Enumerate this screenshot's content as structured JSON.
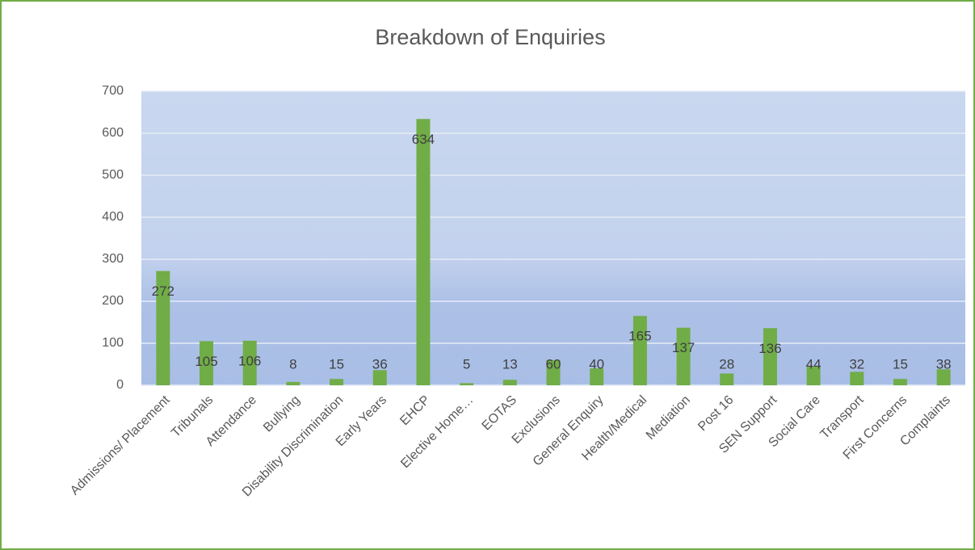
{
  "chart_data": {
    "type": "bar",
    "title": "Breakdown of Enquiries",
    "categories": [
      "Admissions/ Placement",
      "Tribunals",
      "Attendance",
      "Bullying",
      "Disability Discrimination",
      "Early Years",
      "EHCP",
      "Elective Home…",
      "EOTAS",
      "Exclusions",
      "General Enquiry",
      "Health/Medical",
      "Mediation",
      "Post 16",
      "SEN Support",
      "Social Care",
      "Transport",
      "First Concerns",
      "Complaints"
    ],
    "values": [
      272,
      105,
      106,
      8,
      15,
      36,
      634,
      5,
      13,
      60,
      40,
      165,
      137,
      28,
      136,
      44,
      32,
      15,
      38
    ],
    "color": "#70ad47",
    "ylim": [
      0,
      700
    ],
    "yticks": [
      0,
      100,
      200,
      300,
      400,
      500,
      600,
      700
    ],
    "grid": true
  }
}
